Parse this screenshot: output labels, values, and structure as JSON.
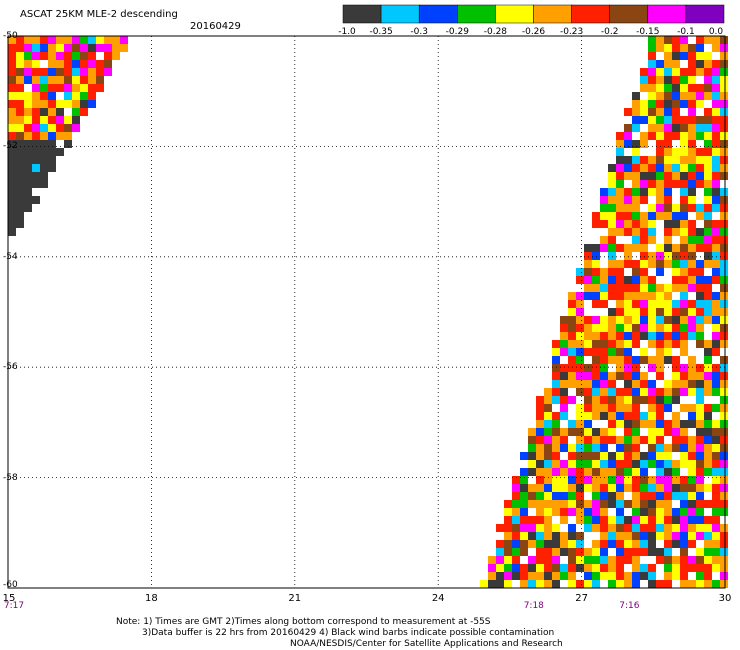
{
  "header": {
    "title": "ASCAT 25KM MLE-2 descending",
    "date": "20160429"
  },
  "colorbar": {
    "labels": [
      "-1.0",
      "-0.35",
      "-0.3",
      "-0.29",
      "-0.28",
      "-0.26",
      "-0.23",
      "-0.2",
      "-0.15",
      "-0.1",
      "0.0"
    ],
    "colors": [
      "#3a3a3a",
      "#00c8ff",
      "#0040ff",
      "#00c000",
      "#ffff00",
      "#ffa000",
      "#ff2000",
      "#8b4513",
      "#ff00ff",
      "#8000c0"
    ]
  },
  "axes": {
    "lat_labels": [
      "-50",
      "-52",
      "-54",
      "-56",
      "-58",
      "-60"
    ],
    "lon_labels": [
      "15",
      "18",
      "21",
      "24",
      "27",
      "30"
    ],
    "time_labels": [
      {
        "label": "7:17",
        "lon": 15
      },
      {
        "label": "7:18",
        "lon": 26
      },
      {
        "label": "7:16",
        "lon": 28
      }
    ]
  },
  "notes": {
    "line1": "Note: 1) Times are GMT 2)Times along bottom correspond to measurement at -55S",
    "line2": "3)Data buffer is 22 hrs from 20160429 4) Black wind barbs indicate possible contamination",
    "line3": "NOAA/NESDIS/Center for Satellite Applications and Research"
  },
  "chart_data": {
    "type": "heatmap",
    "lon_range": [
      15,
      30
    ],
    "lat_range": [
      -60,
      -50
    ],
    "grid": true,
    "swaths": [
      {
        "name": "west",
        "description": "triangular swath from -50 to -54, east edge narrowing south"
      },
      {
        "name": "east",
        "description": "swath widening southward from ~28.5E at -50 to ~24.8E at -60"
      }
    ]
  }
}
